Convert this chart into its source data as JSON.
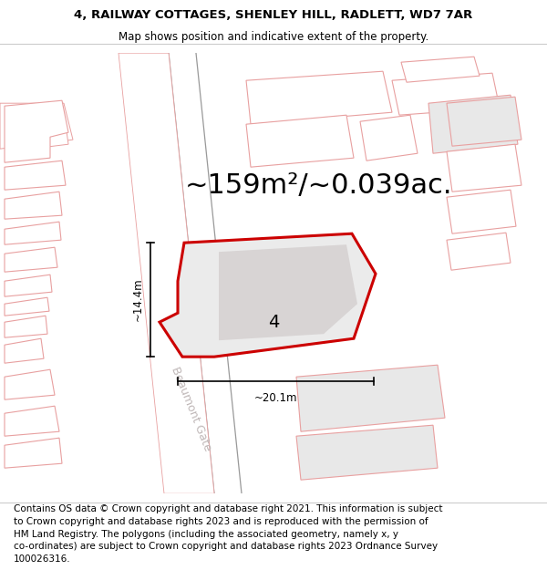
{
  "title_line1": "4, RAILWAY COTTAGES, SHENLEY HILL, RADLETT, WD7 7AR",
  "title_line2": "Map shows position and indicative extent of the property.",
  "area_text": "~159m²/~0.039ac.",
  "width_label": "~20.1m",
  "height_label": "~14.4m",
  "label_number": "4",
  "street_name": "Beaumont Gate",
  "footer_lines": [
    "Contains OS data © Crown copyright and database right 2021. This information is subject",
    "to Crown copyright and database rights 2023 and is reproduced with the permission of",
    "HM Land Registry. The polygons (including the associated geometry, namely x, y",
    "co-ordinates) are subject to Crown copyright and database rights 2023 Ordnance Survey",
    "100026316."
  ],
  "pink_outline_color": "#e8a0a0",
  "red_plot_color": "#cc0000",
  "road_line_color": "#aaaaaa",
  "plot_fill_color": "#e8e8e8",
  "inner_fill_color": "#d8d4d4",
  "dim_color": "#000000",
  "title_fontsize": 9.5,
  "subtitle_fontsize": 8.5,
  "area_fontsize": 22,
  "label_fontsize": 14,
  "footer_fontsize": 7.5,
  "street_fontsize": 9,
  "note_scale": 1.1
}
